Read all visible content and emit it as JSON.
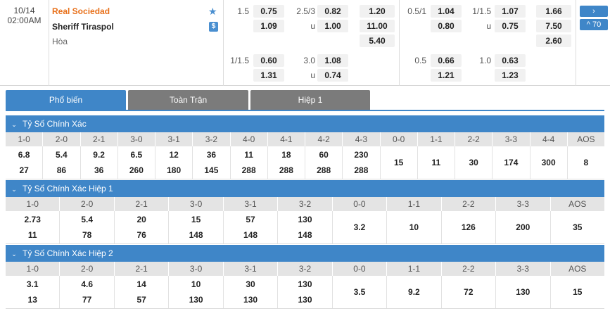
{
  "match": {
    "date": "10/14",
    "time": "02:00AM",
    "home": "Real Sociedad",
    "away": "Sheriff Tiraspol",
    "draw": "Hòa",
    "ft_row1": {
      "ah": {
        "hcp_home": "1.5",
        "home": "0.75",
        "hcp_away": "",
        "away": "1.09"
      },
      "ou": {
        "hcp": "2.5/3",
        "over": "0.82",
        "under_label": "u",
        "under": "1.00"
      },
      "x12": {
        "home": "1.20",
        "away": "11.00",
        "draw": "5.40"
      }
    },
    "ft_row2": {
      "ah": {
        "hcp_home": "1/1.5",
        "home": "0.60",
        "away": "1.31"
      },
      "ou": {
        "hcp": "3.0",
        "over": "1.08",
        "under_label": "u",
        "under": "0.74"
      }
    },
    "h1_row1": {
      "ah": {
        "hcp_home": "0.5/1",
        "home": "1.04",
        "away": "0.80"
      },
      "ou": {
        "hcp": "1/1.5",
        "over": "1.07",
        "under_label": "u",
        "under": "0.75"
      },
      "x12": {
        "home": "1.66",
        "away": "7.50",
        "draw": "2.60"
      }
    },
    "h1_row2": {
      "ah": {
        "hcp_home": "0.5",
        "home": "0.66",
        "away": "1.21"
      },
      "ou": {
        "hcp": "1.0",
        "over": "0.63",
        "under": "1.23"
      }
    },
    "nav": {
      "next": "›",
      "more": "^ 70"
    }
  },
  "tabs": [
    {
      "label": "Phổ biến",
      "active": true
    },
    {
      "label": "Toàn Trận",
      "active": false
    },
    {
      "label": "Hiệp 1",
      "active": false
    }
  ],
  "sections": [
    {
      "title": "Tỷ Số Chính Xác",
      "scores": [
        "1-0",
        "2-0",
        "2-1",
        "3-0",
        "3-1",
        "3-2",
        "4-0",
        "4-1",
        "4-2",
        "4-3",
        "0-0",
        "1-1",
        "2-2",
        "3-3",
        "4-4",
        "AOS"
      ],
      "top": [
        "6.8",
        "5.4",
        "9.2",
        "6.5",
        "12",
        "36",
        "11",
        "18",
        "60",
        "230",
        "15",
        "11",
        "30",
        "174",
        "300",
        "8"
      ],
      "bottom": [
        "27",
        "86",
        "36",
        "260",
        "180",
        "145",
        "288",
        "288",
        "288",
        "288",
        "",
        "",
        "",
        "",
        "",
        ""
      ]
    },
    {
      "title": "Tỷ Số Chính Xác Hiệp 1",
      "scores": [
        "1-0",
        "2-0",
        "2-1",
        "3-0",
        "3-1",
        "3-2",
        "0-0",
        "1-1",
        "2-2",
        "3-3",
        "AOS"
      ],
      "top": [
        "2.73",
        "5.4",
        "20",
        "15",
        "57",
        "130",
        "3.2",
        "10",
        "126",
        "200",
        "35"
      ],
      "bottom": [
        "11",
        "78",
        "76",
        "148",
        "148",
        "148",
        "",
        "",
        "",
        "",
        ""
      ]
    },
    {
      "title": "Tỷ Số Chính Xác Hiệp 2",
      "scores": [
        "1-0",
        "2-0",
        "2-1",
        "3-0",
        "3-1",
        "3-2",
        "0-0",
        "1-1",
        "2-2",
        "3-3",
        "AOS"
      ],
      "top": [
        "3.1",
        "4.6",
        "14",
        "10",
        "30",
        "130",
        "3.5",
        "9.2",
        "72",
        "130",
        "15"
      ],
      "bottom": [
        "13",
        "77",
        "57",
        "130",
        "130",
        "130",
        "",
        "",
        "",
        "",
        ""
      ]
    }
  ]
}
